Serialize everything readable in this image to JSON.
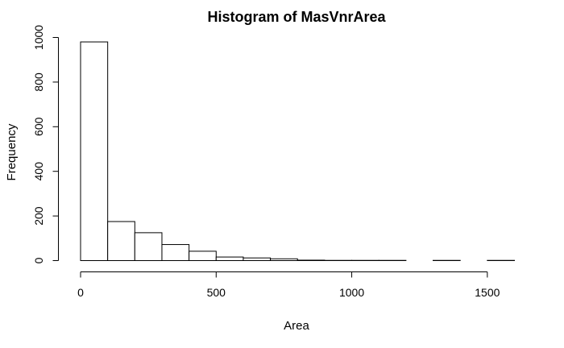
{
  "chart_data": {
    "type": "bar",
    "title": "Histogram of MasVnrArea",
    "xlabel": "Area",
    "ylabel": "Frequency",
    "bins": [
      {
        "start": 0,
        "end": 100,
        "value": 980
      },
      {
        "start": 100,
        "end": 200,
        "value": 175
      },
      {
        "start": 200,
        "end": 300,
        "value": 125
      },
      {
        "start": 300,
        "end": 400,
        "value": 72
      },
      {
        "start": 400,
        "end": 500,
        "value": 42
      },
      {
        "start": 500,
        "end": 600,
        "value": 16
      },
      {
        "start": 600,
        "end": 700,
        "value": 12
      },
      {
        "start": 700,
        "end": 800,
        "value": 8
      },
      {
        "start": 800,
        "end": 900,
        "value": 2
      },
      {
        "start": 900,
        "end": 1000,
        "value": 1
      },
      {
        "start": 1000,
        "end": 1100,
        "value": 1
      },
      {
        "start": 1100,
        "end": 1200,
        "value": 1
      },
      {
        "start": 1200,
        "end": 1300,
        "value": 0
      },
      {
        "start": 1300,
        "end": 1400,
        "value": 1
      },
      {
        "start": 1400,
        "end": 1500,
        "value": 0
      },
      {
        "start": 1500,
        "end": 1600,
        "value": 1
      }
    ],
    "x_ticks": [
      "0",
      "500",
      "1000",
      "1500"
    ],
    "y_ticks": [
      "0",
      "200",
      "400",
      "600",
      "800",
      "1000"
    ],
    "xlim": [
      0,
      1600
    ],
    "ylim": [
      0,
      1000
    ],
    "grid": false,
    "legend": "none"
  }
}
